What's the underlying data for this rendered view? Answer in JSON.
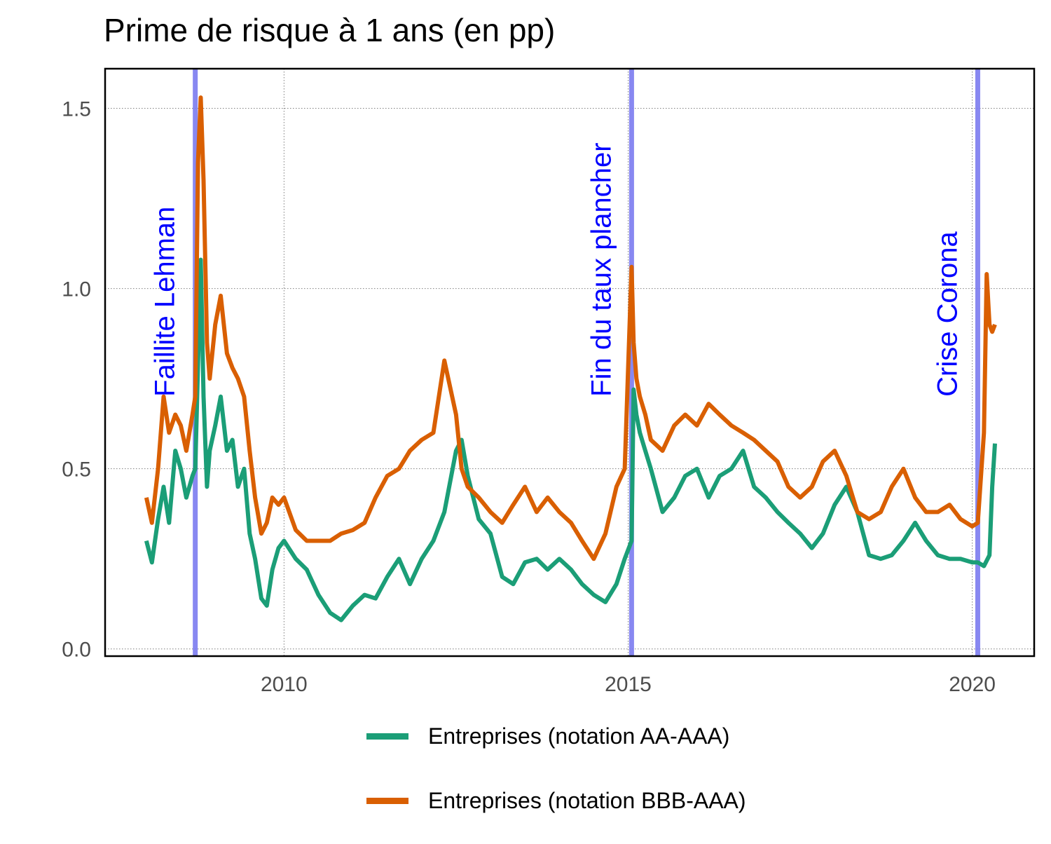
{
  "chart_data": {
    "type": "line",
    "title": "Prime de risque à 1 ans (en pp)",
    "xlabel": "",
    "ylabel": "",
    "xlim": [
      2007.4,
      2020.9
    ],
    "ylim": [
      -0.02,
      1.61
    ],
    "x_ticks": [
      2010,
      2015,
      2020
    ],
    "x_tick_labels": [
      "2010",
      "2015",
      "2020"
    ],
    "y_ticks": [
      0.0,
      0.5,
      1.0,
      1.5
    ],
    "y_tick_labels": [
      "0.0",
      "0.5",
      "1.0",
      "1.5"
    ],
    "grid": true,
    "legend_position": "bottom",
    "events": [
      {
        "x": 2008.71,
        "label": "Faillite Lehman",
        "color": "#7b7bf0",
        "label_color": "#0000ff"
      },
      {
        "x": 2015.05,
        "label": "Fin du taux plancher",
        "color": "#7b7bf0",
        "label_color": "#0000ff"
      },
      {
        "x": 2020.08,
        "label": "Crise Corona",
        "color": "#7b7bf0",
        "label_color": "#0000ff"
      }
    ],
    "series": [
      {
        "name": "Entreprises (notation AA-AAA)",
        "color": "#1b9e77",
        "x": [
          2008.0,
          2008.08,
          2008.17,
          2008.25,
          2008.33,
          2008.42,
          2008.5,
          2008.58,
          2008.67,
          2008.71,
          2008.79,
          2008.83,
          2008.88,
          2008.92,
          2009.0,
          2009.08,
          2009.17,
          2009.25,
          2009.33,
          2009.42,
          2009.5,
          2009.58,
          2009.67,
          2009.75,
          2009.83,
          2009.92,
          2010.0,
          2010.17,
          2010.33,
          2010.5,
          2010.67,
          2010.83,
          2011.0,
          2011.17,
          2011.33,
          2011.5,
          2011.67,
          2011.83,
          2012.0,
          2012.17,
          2012.33,
          2012.5,
          2012.58,
          2012.67,
          2012.83,
          2013.0,
          2013.17,
          2013.33,
          2013.5,
          2013.67,
          2013.83,
          2014.0,
          2014.17,
          2014.33,
          2014.5,
          2014.67,
          2014.83,
          2014.95,
          2015.05,
          2015.08,
          2015.12,
          2015.17,
          2015.25,
          2015.33,
          2015.5,
          2015.67,
          2015.83,
          2016.0,
          2016.17,
          2016.33,
          2016.5,
          2016.67,
          2016.83,
          2017.0,
          2017.17,
          2017.33,
          2017.5,
          2017.67,
          2017.83,
          2018.0,
          2018.17,
          2018.33,
          2018.5,
          2018.67,
          2018.83,
          2019.0,
          2019.17,
          2019.33,
          2019.5,
          2019.67,
          2019.83,
          2020.0,
          2020.08,
          2020.17,
          2020.25,
          2020.29,
          2020.33
        ],
        "values": [
          0.3,
          0.24,
          0.36,
          0.45,
          0.35,
          0.55,
          0.5,
          0.42,
          0.48,
          0.5,
          1.08,
          0.7,
          0.45,
          0.55,
          0.62,
          0.7,
          0.55,
          0.58,
          0.45,
          0.5,
          0.32,
          0.25,
          0.14,
          0.12,
          0.22,
          0.28,
          0.3,
          0.25,
          0.22,
          0.15,
          0.1,
          0.08,
          0.12,
          0.15,
          0.14,
          0.2,
          0.25,
          0.18,
          0.25,
          0.3,
          0.38,
          0.55,
          0.58,
          0.48,
          0.36,
          0.32,
          0.2,
          0.18,
          0.24,
          0.25,
          0.22,
          0.25,
          0.22,
          0.18,
          0.15,
          0.13,
          0.18,
          0.25,
          0.3,
          0.72,
          0.65,
          0.6,
          0.55,
          0.5,
          0.38,
          0.42,
          0.48,
          0.5,
          0.42,
          0.48,
          0.5,
          0.55,
          0.45,
          0.42,
          0.38,
          0.35,
          0.32,
          0.28,
          0.32,
          0.4,
          0.45,
          0.38,
          0.26,
          0.25,
          0.26,
          0.3,
          0.35,
          0.3,
          0.26,
          0.25,
          0.25,
          0.24,
          0.24,
          0.23,
          0.26,
          0.45,
          0.57
        ]
      },
      {
        "name": "Entreprises (notation BBB-AAA)",
        "color": "#d95f02",
        "x": [
          2008.0,
          2008.08,
          2008.17,
          2008.25,
          2008.33,
          2008.42,
          2008.5,
          2008.58,
          2008.67,
          2008.71,
          2008.75,
          2008.79,
          2008.83,
          2008.88,
          2008.92,
          2009.0,
          2009.08,
          2009.17,
          2009.25,
          2009.33,
          2009.42,
          2009.5,
          2009.58,
          2009.67,
          2009.75,
          2009.83,
          2009.92,
          2010.0,
          2010.17,
          2010.33,
          2010.5,
          2010.67,
          2010.83,
          2011.0,
          2011.17,
          2011.33,
          2011.5,
          2011.67,
          2011.83,
          2012.0,
          2012.17,
          2012.33,
          2012.5,
          2012.58,
          2012.67,
          2012.83,
          2013.0,
          2013.17,
          2013.33,
          2013.5,
          2013.67,
          2013.83,
          2014.0,
          2014.17,
          2014.33,
          2014.5,
          2014.67,
          2014.83,
          2014.95,
          2015.05,
          2015.08,
          2015.12,
          2015.17,
          2015.25,
          2015.33,
          2015.5,
          2015.67,
          2015.83,
          2016.0,
          2016.17,
          2016.33,
          2016.5,
          2016.67,
          2016.83,
          2017.0,
          2017.17,
          2017.33,
          2017.5,
          2017.67,
          2017.83,
          2018.0,
          2018.17,
          2018.33,
          2018.5,
          2018.67,
          2018.83,
          2019.0,
          2019.17,
          2019.33,
          2019.5,
          2019.67,
          2019.83,
          2020.0,
          2020.08,
          2020.17,
          2020.21,
          2020.25,
          2020.29,
          2020.33
        ],
        "values": [
          0.42,
          0.35,
          0.5,
          0.7,
          0.6,
          0.65,
          0.62,
          0.55,
          0.65,
          0.7,
          1.35,
          1.53,
          1.3,
          0.85,
          0.75,
          0.9,
          0.98,
          0.82,
          0.78,
          0.75,
          0.7,
          0.55,
          0.42,
          0.32,
          0.35,
          0.42,
          0.4,
          0.42,
          0.33,
          0.3,
          0.3,
          0.3,
          0.32,
          0.33,
          0.35,
          0.42,
          0.48,
          0.5,
          0.55,
          0.58,
          0.6,
          0.8,
          0.65,
          0.5,
          0.45,
          0.42,
          0.38,
          0.35,
          0.4,
          0.45,
          0.38,
          0.42,
          0.38,
          0.35,
          0.3,
          0.25,
          0.32,
          0.45,
          0.5,
          1.06,
          0.85,
          0.75,
          0.7,
          0.65,
          0.58,
          0.55,
          0.62,
          0.65,
          0.62,
          0.68,
          0.65,
          0.62,
          0.6,
          0.58,
          0.55,
          0.52,
          0.45,
          0.42,
          0.45,
          0.52,
          0.55,
          0.48,
          0.38,
          0.36,
          0.38,
          0.45,
          0.5,
          0.42,
          0.38,
          0.38,
          0.4,
          0.36,
          0.34,
          0.35,
          0.6,
          1.04,
          0.9,
          0.88,
          0.9
        ]
      }
    ]
  }
}
